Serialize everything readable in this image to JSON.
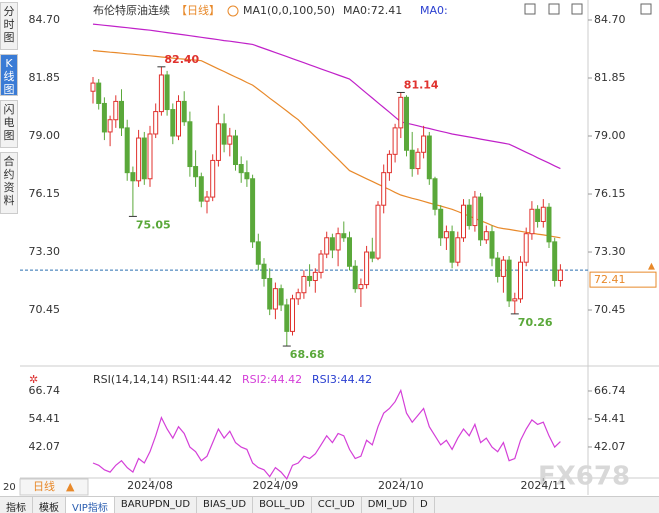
{
  "chart_data": {
    "type": "candlestick",
    "title": "布伦特原油连续",
    "period": "【日线】",
    "indicator_label": "MA1(0,0,100,50)",
    "ylim": [
      68.24,
      85.29
    ],
    "yticks": [
      {
        "value": 84.7,
        "label": "84.70"
      },
      81.85,
      {
        "value": 79,
        "label": "79.00"
      },
      76.15,
      {
        "value": 73.3,
        "label": "73.30"
      },
      70.45
    ],
    "up_color": "#e0322e",
    "down_color": "#5aa83a",
    "categories": [
      null,
      null,
      null,
      null,
      null,
      null,
      null,
      null,
      null,
      null,
      "2024/08",
      null,
      null,
      null,
      null,
      null,
      null,
      null,
      null,
      null,
      null,
      null,
      null,
      null,
      null,
      null,
      null,
      null,
      null,
      null,
      null,
      null,
      "2024/09",
      null,
      null,
      null,
      null,
      null,
      null,
      null,
      null,
      null,
      null,
      null,
      null,
      null,
      null,
      null,
      null,
      null,
      null,
      null,
      null,
      null,
      "2024/10",
      null,
      null,
      null,
      null,
      null,
      null,
      null,
      null,
      null,
      null,
      null,
      null,
      null,
      null,
      null,
      null,
      null,
      null,
      null,
      null,
      null,
      null,
      null,
      null,
      "2024/11",
      null,
      null,
      null
    ],
    "candles": [
      [
        81.2,
        81.9,
        80.6,
        81.6
      ],
      [
        81.6,
        81.8,
        80.3,
        80.6
      ],
      [
        80.6,
        80.9,
        78.8,
        79.2
      ],
      [
        79.2,
        80.0,
        78.5,
        79.8
      ],
      [
        79.8,
        81.0,
        79.4,
        80.7
      ],
      [
        80.7,
        81.3,
        79.0,
        79.4
      ],
      [
        79.4,
        79.8,
        76.8,
        77.2
      ],
      [
        77.2,
        77.5,
        75.05,
        76.8
      ],
      [
        76.8,
        79.3,
        76.5,
        78.9
      ],
      [
        78.9,
        79.2,
        76.6,
        76.9
      ],
      [
        76.9,
        79.5,
        76.5,
        79.1
      ],
      [
        79.1,
        80.6,
        78.9,
        80.2
      ],
      [
        80.2,
        82.4,
        80.0,
        82.0
      ],
      [
        82.0,
        82.2,
        80.0,
        80.3
      ],
      [
        80.3,
        80.6,
        78.6,
        79.0
      ],
      [
        79.0,
        81.0,
        78.8,
        80.7
      ],
      [
        80.7,
        81.2,
        79.5,
        79.7
      ],
      [
        79.7,
        80.2,
        77.0,
        77.5
      ],
      [
        77.5,
        78.3,
        76.5,
        77.0
      ],
      [
        77.0,
        77.2,
        75.5,
        75.8
      ],
      [
        75.8,
        76.3,
        75.2,
        76.0
      ],
      [
        76.0,
        78.1,
        75.8,
        77.8
      ],
      [
        77.8,
        80.5,
        77.5,
        79.6
      ],
      [
        79.6,
        80.1,
        78.2,
        78.6
      ],
      [
        78.6,
        79.4,
        78.0,
        79.0
      ],
      [
        79.0,
        79.3,
        77.3,
        77.6
      ],
      [
        77.6,
        78.0,
        76.7,
        77.2
      ],
      [
        77.2,
        77.8,
        76.5,
        76.9
      ],
      [
        76.9,
        77.1,
        73.5,
        73.8
      ],
      [
        73.8,
        74.2,
        72.4,
        72.7
      ],
      [
        72.7,
        73.0,
        71.6,
        72.0
      ],
      [
        72.0,
        72.5,
        70.2,
        70.5
      ],
      [
        70.5,
        71.8,
        70.0,
        71.5
      ],
      [
        71.5,
        71.7,
        70.4,
        70.7
      ],
      [
        70.7,
        71.0,
        68.68,
        69.4
      ],
      [
        69.4,
        71.2,
        69.2,
        71.0
      ],
      [
        71.0,
        71.5,
        70.7,
        71.3
      ],
      [
        71.3,
        72.4,
        71.0,
        72.1
      ],
      [
        72.1,
        72.7,
        71.6,
        71.9
      ],
      [
        71.9,
        72.5,
        71.3,
        72.3
      ],
      [
        72.3,
        73.4,
        72.0,
        73.2
      ],
      [
        73.2,
        74.3,
        73.0,
        74.0
      ],
      [
        74.0,
        74.2,
        73.0,
        73.4
      ],
      [
        73.4,
        74.5,
        72.6,
        74.2
      ],
      [
        74.2,
        74.8,
        73.8,
        74.0
      ],
      [
        74.0,
        74.3,
        72.4,
        72.6
      ],
      [
        72.6,
        72.9,
        71.3,
        71.5
      ],
      [
        71.5,
        72.0,
        70.6,
        71.7
      ],
      [
        71.7,
        73.6,
        71.5,
        73.3
      ],
      [
        73.3,
        74.0,
        72.8,
        73.0
      ],
      [
        73.0,
        75.8,
        72.9,
        75.6
      ],
      [
        75.6,
        77.6,
        75.2,
        77.2
      ],
      [
        77.2,
        78.3,
        76.8,
        78.1
      ],
      [
        78.1,
        79.6,
        77.7,
        79.4
      ],
      [
        79.4,
        81.14,
        78.9,
        80.9
      ],
      [
        80.9,
        81.0,
        78.0,
        78.3
      ],
      [
        78.3,
        79.2,
        77.0,
        77.4
      ],
      [
        77.4,
        78.4,
        77.1,
        78.2
      ],
      [
        78.2,
        79.5,
        77.9,
        79.0
      ],
      [
        79.0,
        79.2,
        76.6,
        76.9
      ],
      [
        76.9,
        77.0,
        75.1,
        75.4
      ],
      [
        75.4,
        75.6,
        73.6,
        74.0
      ],
      [
        74.0,
        74.6,
        73.4,
        74.3
      ],
      [
        74.3,
        74.6,
        72.5,
        72.8
      ],
      [
        72.8,
        74.3,
        72.6,
        74.0
      ],
      [
        74.0,
        75.9,
        73.8,
        75.6
      ],
      [
        75.6,
        75.9,
        74.4,
        74.6
      ],
      [
        74.6,
        76.3,
        74.3,
        76.0
      ],
      [
        76.0,
        76.2,
        73.6,
        73.9
      ],
      [
        73.9,
        74.6,
        73.7,
        74.3
      ],
      [
        74.3,
        74.6,
        72.6,
        73.0
      ],
      [
        73.0,
        73.3,
        71.8,
        72.1
      ],
      [
        72.1,
        73.1,
        71.3,
        72.9
      ],
      [
        72.9,
        73.1,
        70.6,
        70.9
      ],
      [
        70.9,
        71.3,
        70.26,
        71.0
      ],
      [
        71.0,
        73.1,
        70.8,
        72.8
      ],
      [
        72.8,
        74.5,
        72.6,
        74.2
      ],
      [
        74.2,
        75.8,
        73.9,
        75.4
      ],
      [
        75.4,
        75.6,
        74.5,
        74.8
      ],
      [
        74.8,
        75.9,
        74.5,
        75.5
      ],
      [
        75.5,
        75.7,
        73.5,
        73.8
      ],
      [
        73.8,
        74.0,
        71.6,
        71.9
      ],
      [
        71.9,
        72.7,
        71.6,
        72.41
      ]
    ],
    "series": [
      {
        "name": "MA0:72.41",
        "color": "#e8892a",
        "values": [
          83.2,
          83.17,
          83.15,
          83.12,
          83.1,
          83.07,
          83.04,
          83.02,
          82.99,
          82.96,
          82.94,
          82.91,
          82.88,
          82.86,
          82.83,
          82.8,
          82.78,
          82.75,
          82.73,
          82.7,
          82.57,
          82.43,
          82.3,
          82.17,
          82.03,
          81.9,
          81.77,
          81.63,
          81.5,
          81.29,
          81.08,
          80.86,
          80.65,
          80.44,
          80.23,
          80.01,
          79.8,
          79.52,
          79.24,
          78.97,
          78.69,
          78.41,
          78.13,
          77.86,
          77.58,
          77.3,
          77.17,
          77.03,
          76.9,
          76.77,
          76.63,
          76.5,
          76.37,
          76.23,
          76.1,
          76.02,
          75.94,
          75.87,
          75.79,
          75.71,
          75.63,
          75.56,
          75.48,
          75.4,
          75.29,
          75.18,
          75.06,
          74.95,
          74.84,
          74.73,
          74.61,
          74.5,
          74.45,
          74.41,
          74.36,
          74.32,
          74.27,
          74.23,
          74.18,
          74.14,
          74.09,
          74.05,
          74.0
        ]
      },
      {
        "name": "MA0:",
        "color": "#c021c9",
        "values": [
          84.5,
          84.47,
          84.44,
          84.41,
          84.38,
          84.35,
          84.32,
          84.29,
          84.26,
          84.23,
          84.2,
          84.16,
          84.12,
          84.08,
          84.04,
          84.01,
          83.97,
          83.93,
          83.89,
          83.85,
          83.81,
          83.77,
          83.73,
          83.69,
          83.66,
          83.62,
          83.58,
          83.54,
          83.5,
          83.4,
          83.3,
          83.2,
          83.1,
          83.0,
          82.9,
          82.8,
          82.7,
          82.6,
          82.5,
          82.4,
          82.3,
          82.2,
          82.1,
          82.0,
          81.9,
          81.8,
          81.57,
          81.33,
          81.1,
          80.87,
          80.63,
          80.4,
          80.17,
          79.93,
          79.7,
          79.63,
          79.57,
          79.5,
          79.43,
          79.37,
          79.3,
          79.23,
          79.17,
          79.1,
          79.05,
          79.0,
          78.95,
          78.9,
          78.85,
          78.8,
          78.75,
          78.7,
          78.65,
          78.6,
          78.47,
          78.33,
          78.2,
          78.07,
          77.93,
          77.8,
          77.67,
          77.53,
          77.4
        ]
      }
    ],
    "peak_labels": [
      "82.40",
      "75.05",
      "68.68",
      "81.14",
      "70.26"
    ],
    "last_price": {
      "value": 72.41,
      "label": "72.41"
    },
    "rsi": {
      "title": "RSI(14,14,14)",
      "labels": [
        "RSI1:44.42",
        "RSI2:44.42",
        "RSI3:44.42"
      ],
      "color": "#d43fd8",
      "ylim": [
        28.4,
        75.1
      ],
      "yticks": [
        66.74,
        54.41,
        42.07
      ],
      "values": [
        35,
        34,
        32,
        31,
        34,
        36,
        33,
        31,
        37,
        35,
        40,
        47,
        55,
        50,
        46,
        51,
        48,
        42,
        40,
        36,
        38,
        44,
        50,
        46,
        49,
        44,
        42,
        41,
        35,
        33,
        32,
        29,
        33,
        31,
        28,
        34,
        35,
        38,
        37,
        39,
        43,
        47,
        44,
        48,
        47,
        41,
        37,
        38,
        45,
        43,
        51,
        57,
        59,
        62,
        67,
        57,
        53,
        56,
        59,
        51,
        47,
        43,
        45,
        41,
        46,
        50,
        47,
        52,
        44,
        46,
        42,
        40,
        44,
        36,
        37,
        45,
        50,
        54,
        52,
        53,
        47,
        42,
        44.42
      ]
    }
  },
  "ui": {
    "side_tabs": [
      "分时图",
      "K线图",
      "闪电图",
      "合约资料"
    ],
    "period_button": "日线",
    "left_number": "20",
    "watermark": "FX678",
    "bottom_tabs": [
      "指标",
      "模板",
      "VIP指标",
      "BARUPDN_UD",
      "BIAS_UD",
      "BOLL_UD",
      "CCI_UD",
      "DMI_UD",
      "D"
    ]
  }
}
